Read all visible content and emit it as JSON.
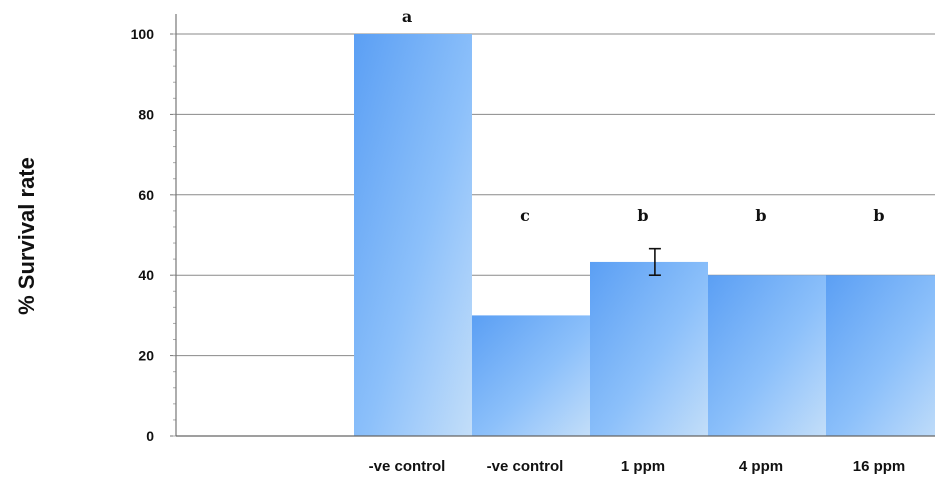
{
  "chart_data": {
    "type": "bar",
    "title": "",
    "xlabel": "",
    "ylabel": "% Survival rate",
    "ylim": [
      0,
      100
    ],
    "yticks": [
      0,
      20,
      40,
      60,
      80,
      100
    ],
    "grid": true,
    "categories": [
      "-ve control",
      "-ve control",
      "1 ppm",
      "4 ppm",
      "16 ppm"
    ],
    "values": [
      100,
      30,
      43.3,
      40,
      40
    ],
    "error": [
      null,
      null,
      3.3,
      null,
      null
    ],
    "significance_labels": [
      "a",
      "c",
      "b",
      "b",
      "b"
    ],
    "bar_color": "#6aaaf5"
  }
}
